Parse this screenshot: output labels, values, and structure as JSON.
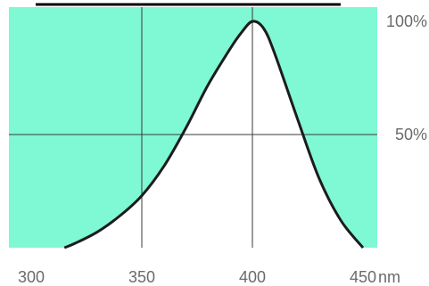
{
  "chart_data": {
    "type": "area",
    "title": "",
    "xlabel": "",
    "ylabel": "",
    "x_unit": "nm",
    "xlim": [
      300,
      450
    ],
    "ylim": [
      0,
      100
    ],
    "grid": true,
    "x_ticks": [
      {
        "value": 300,
        "label": "300"
      },
      {
        "value": 350,
        "label": "350"
      },
      {
        "value": 400,
        "label": "400"
      },
      {
        "value": 450,
        "label": "450"
      }
    ],
    "y_ticks": [
      {
        "value": 50,
        "label": "50%"
      },
      {
        "value": 100,
        "label": "100%"
      }
    ],
    "series": [
      {
        "x": [
          315,
          320,
          330,
          340,
          350,
          360,
          370,
          380,
          390,
          395,
          400,
          405,
          410,
          420,
          430,
          440,
          450
        ],
        "values": [
          0,
          2,
          7,
          14,
          23,
          36,
          53,
          72,
          88,
          95,
          100,
          97,
          86,
          58,
          31,
          12,
          0
        ]
      }
    ],
    "colors": {
      "fill_outside": "#7ff8d4",
      "curve": "#1c1c1c",
      "grid": "#3a3a3a",
      "under_curve": "#ffffff"
    }
  }
}
